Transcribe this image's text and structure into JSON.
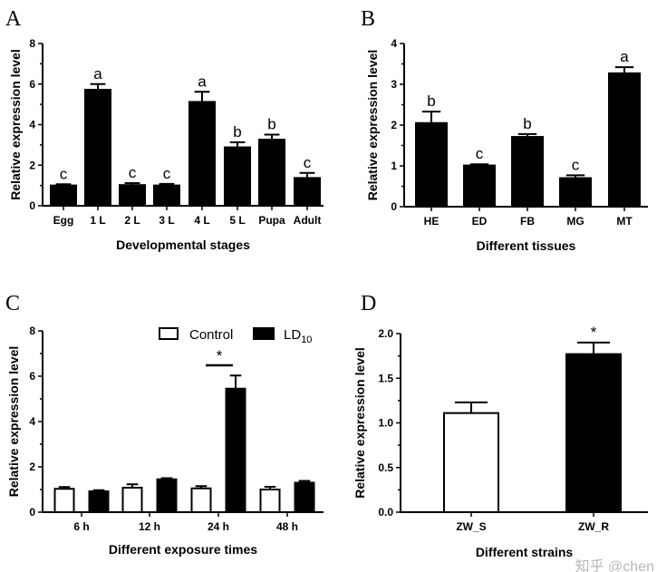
{
  "chart_data": [
    {
      "panel": "A",
      "type": "bar",
      "categories": [
        "Egg",
        "1 L",
        "2 L",
        "3 L",
        "4 L",
        "5 L",
        "Pupa",
        "Adult"
      ],
      "values": [
        1.0,
        5.72,
        1.02,
        1.0,
        5.12,
        2.88,
        3.26,
        1.37
      ],
      "errors": [
        0.06,
        0.28,
        0.1,
        0.08,
        0.5,
        0.25,
        0.25,
        0.25
      ],
      "significance": [
        "c",
        "a",
        "c",
        "c",
        "a",
        "b",
        "b",
        "c"
      ],
      "xlabel": "Developmental stages",
      "ylabel": "Relative expression level",
      "ylim": [
        0,
        8
      ],
      "yticks": [
        "0",
        "2",
        "4",
        "6",
        "8"
      ]
    },
    {
      "panel": "B",
      "type": "bar",
      "categories": [
        "HE",
        "ED",
        "FB",
        "MG",
        "MT"
      ],
      "values": [
        2.05,
        1.01,
        1.71,
        0.7,
        3.27
      ],
      "errors": [
        0.28,
        0.03,
        0.07,
        0.07,
        0.15
      ],
      "significance": [
        "b",
        "c",
        "b",
        "c",
        "a"
      ],
      "xlabel": "Different tissues",
      "ylabel": "Relative expression level",
      "ylim": [
        0,
        4
      ],
      "yticks": [
        "0",
        "1",
        "2",
        "3",
        "4"
      ]
    },
    {
      "panel": "C",
      "type": "bar",
      "categories": [
        "6 h",
        "12 h",
        "24 h",
        "48 h"
      ],
      "series": [
        {
          "name": "Control",
          "values": [
            1.03,
            1.08,
            1.05,
            1.0
          ],
          "errors": [
            0.08,
            0.15,
            0.1,
            0.12
          ],
          "color": "#ffffff"
        },
        {
          "name": "LD",
          "name_sub": "10",
          "values": [
            0.92,
            1.45,
            5.45,
            1.3
          ],
          "errors": [
            0.05,
            0.05,
            0.58,
            0.08
          ],
          "color": "#000000"
        }
      ],
      "annotation": "*",
      "xlabel": "Different exposure times",
      "ylabel": "Relative expression level",
      "ylim": [
        0,
        8
      ],
      "yticks": [
        "0",
        "2",
        "4",
        "6",
        "8"
      ],
      "legend": "top-right"
    },
    {
      "panel": "D",
      "type": "bar",
      "categories": [
        "ZW_S",
        "ZW_R"
      ],
      "values": [
        1.11,
        1.77
      ],
      "errors": [
        0.12,
        0.13
      ],
      "colors": [
        "#ffffff",
        "#000000"
      ],
      "significance": [
        "",
        "*"
      ],
      "xlabel": "Different strains",
      "ylabel": "Relative expression level",
      "ylim": [
        0,
        2.0
      ],
      "yticks": [
        "0.0",
        "0.5",
        "1.0",
        "1.5",
        "2.0"
      ]
    }
  ],
  "watermark": "知乎 @chen"
}
